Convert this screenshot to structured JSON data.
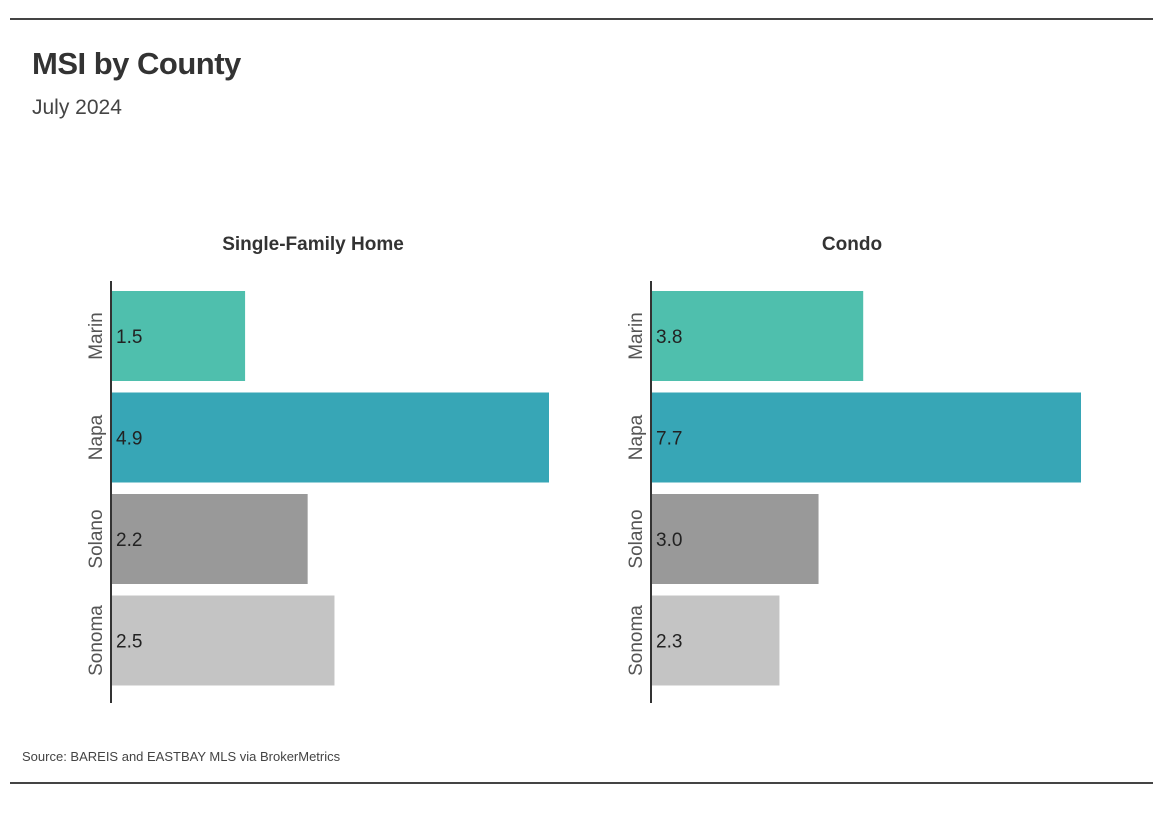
{
  "title": "MSI by County",
  "subtitle": "July 2024",
  "source": "Source:  BAREIS and EASTBAY MLS via BrokerMetrics",
  "chart_data": [
    {
      "type": "bar",
      "orientation": "horizontal",
      "title": "Single-Family Home",
      "categories": [
        "Marin",
        "Napa",
        "Solano",
        "Sonoma"
      ],
      "values": [
        1.5,
        4.9,
        2.2,
        2.5
      ],
      "value_labels": [
        "1.5",
        "4.9",
        "2.2",
        "2.5"
      ],
      "colors": [
        "#4fbfad",
        "#37a6b6",
        "#999999",
        "#c4c4c4"
      ],
      "xlim": [
        0,
        4.9
      ],
      "grid": false
    },
    {
      "type": "bar",
      "orientation": "horizontal",
      "title": "Condo",
      "categories": [
        "Marin",
        "Napa",
        "Solano",
        "Sonoma"
      ],
      "values": [
        3.8,
        7.7,
        3.0,
        2.3
      ],
      "value_labels": [
        "3.8",
        "7.7",
        "3.0",
        "2.3"
      ],
      "colors": [
        "#4fbfad",
        "#37a6b6",
        "#999999",
        "#c4c4c4"
      ],
      "xlim": [
        0,
        7.7
      ],
      "grid": false
    }
  ]
}
